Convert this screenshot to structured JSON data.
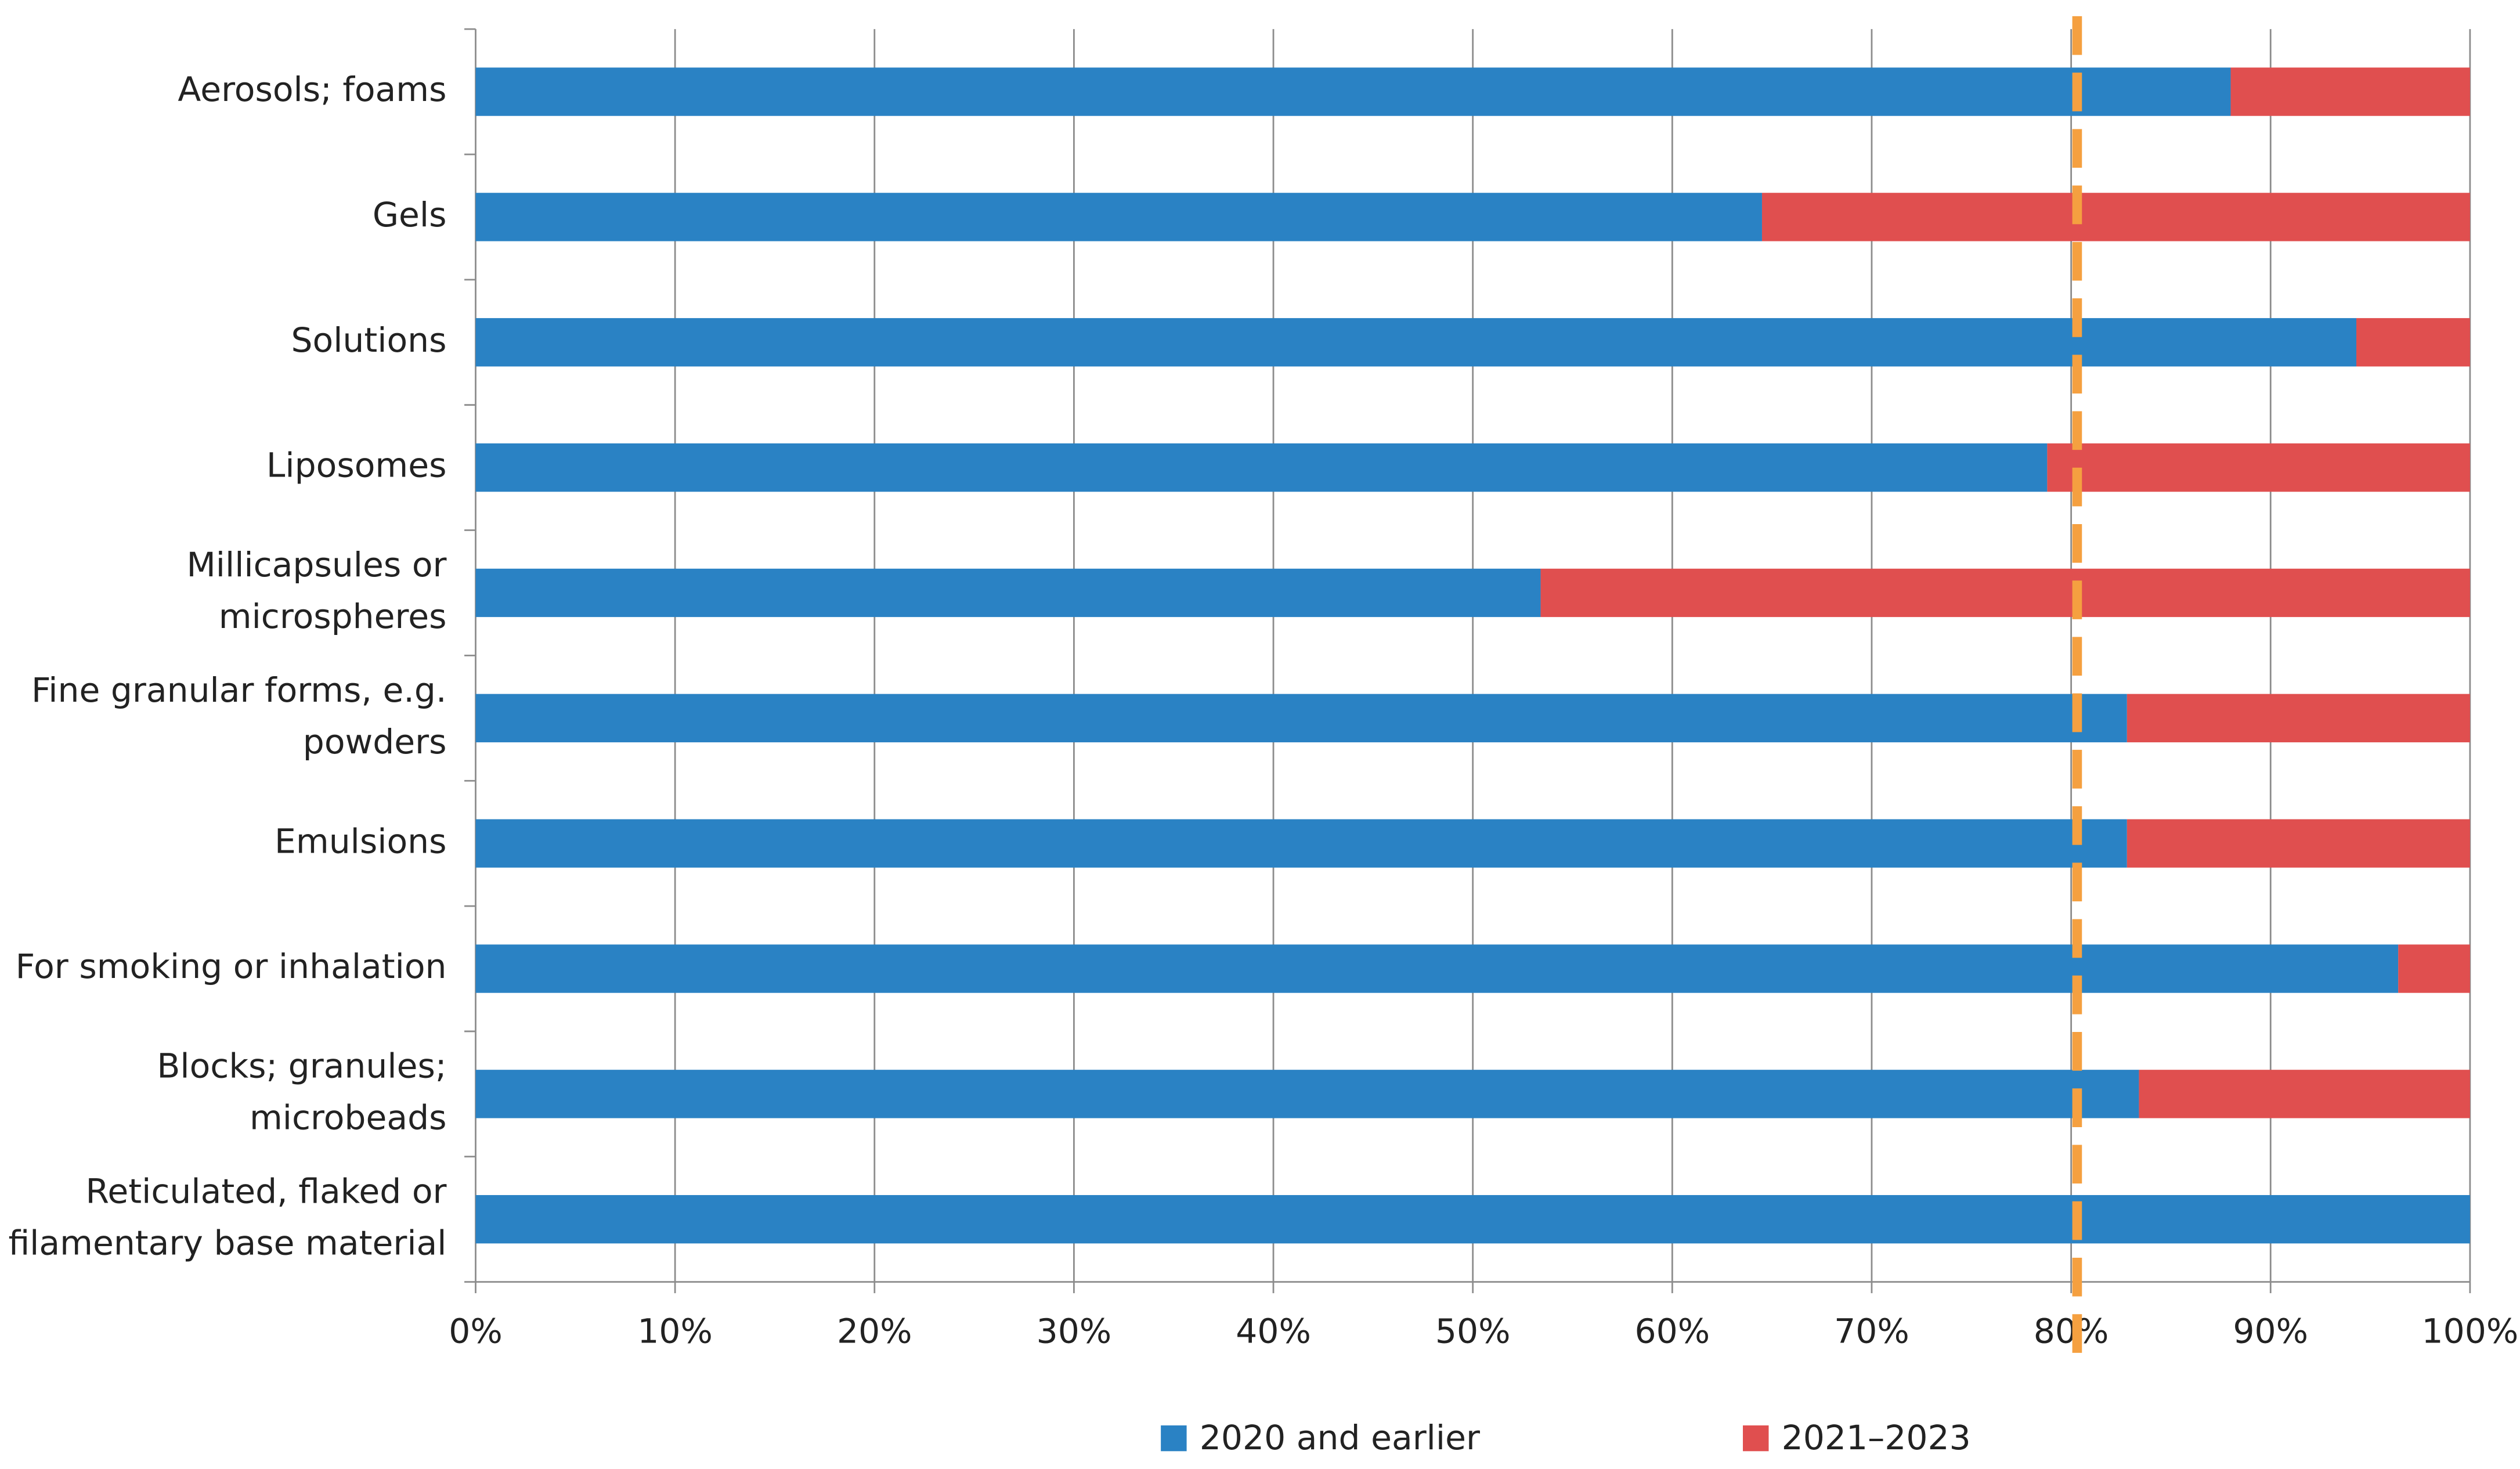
{
  "chart_data": {
    "type": "stacked_barh",
    "categories": [
      [
        "Aerosols; foams"
      ],
      [
        "Gels"
      ],
      [
        "Solutions"
      ],
      [
        "Liposomes"
      ],
      [
        "Millicapsules or",
        "microspheres"
      ],
      [
        "Fine granular forms, e.g.",
        "powders"
      ],
      [
        "Emulsions"
      ],
      [
        "For smoking or inhalation"
      ],
      [
        "Blocks; granules;",
        "microbeads"
      ],
      [
        "Reticulated, flaked or",
        "filamentary base material"
      ]
    ],
    "series": [
      {
        "name": "2020 and earlier",
        "color": "#2a82c4",
        "values": [
          88,
          64.5,
          94.3,
          78.8,
          53.4,
          82.8,
          82.8,
          96.4,
          83.4,
          100
        ]
      },
      {
        "name": "2021–2023",
        "color": "#e04f4f",
        "values": [
          12,
          35.5,
          5.7,
          21.2,
          46.6,
          17.2,
          17.2,
          3.6,
          16.6,
          0
        ]
      }
    ],
    "xlim": [
      0,
      100
    ],
    "xticks": [
      {
        "value": 0,
        "label": "0%"
      },
      {
        "value": 10,
        "label": "10%"
      },
      {
        "value": 20,
        "label": "20%"
      },
      {
        "value": 30,
        "label": "30%"
      },
      {
        "value": 40,
        "label": "40%"
      },
      {
        "value": 50,
        "label": "50%"
      },
      {
        "value": 60,
        "label": "60%"
      },
      {
        "value": 70,
        "label": "70%"
      },
      {
        "value": 80,
        "label": "80%"
      },
      {
        "value": 90,
        "label": "90%"
      },
      {
        "value": 100,
        "label": "100%"
      }
    ],
    "grid": true,
    "reference_line": {
      "value": 80.3,
      "color": "#f5a040"
    }
  }
}
